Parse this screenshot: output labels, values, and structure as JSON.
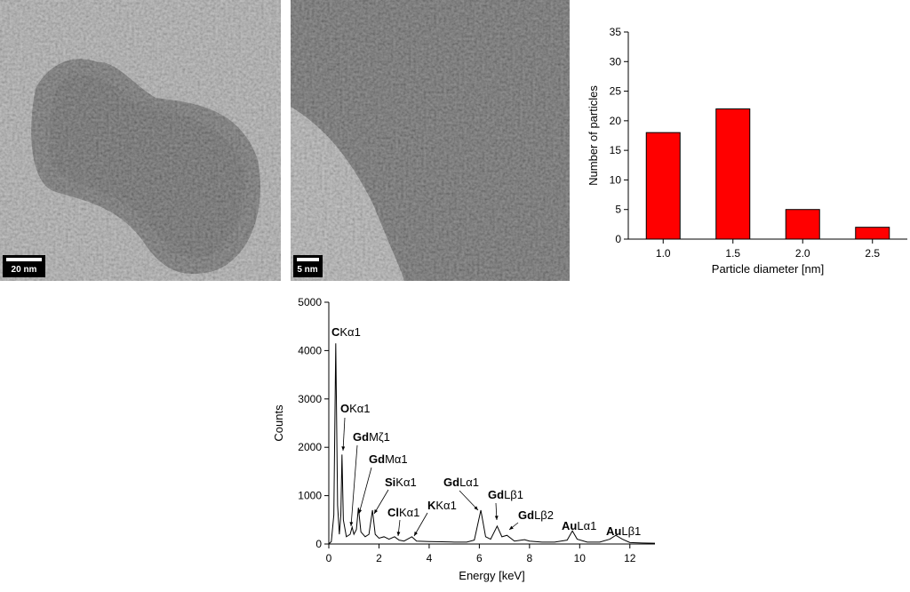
{
  "images": [
    {
      "scale_bar": "20 nm"
    },
    {
      "scale_bar": "5 nm"
    }
  ],
  "chart_data": [
    {
      "type": "bar",
      "x_label": "Particle diameter [nm]",
      "y_label": "Number of particles",
      "categories": [
        "1.0",
        "1.5",
        "2.0",
        "2.5"
      ],
      "values": [
        18,
        22,
        5,
        2
      ],
      "color": "#ff0000",
      "ylim": [
        0,
        35
      ],
      "yticks": [
        0,
        5,
        10,
        15,
        20,
        25,
        30,
        35
      ]
    },
    {
      "type": "line",
      "x_label": "Energy [keV]",
      "y_label": "Counts",
      "color": "#000000",
      "x": [
        0.0,
        0.1,
        0.2,
        0.277,
        0.35,
        0.42,
        0.48,
        0.525,
        0.58,
        0.7,
        0.85,
        0.93,
        1.0,
        1.1,
        1.18,
        1.28,
        1.45,
        1.6,
        1.74,
        1.85,
        2.0,
        2.2,
        2.4,
        2.62,
        2.8,
        3.0,
        3.31,
        3.5,
        4.0,
        4.5,
        5.0,
        5.5,
        5.8,
        6.06,
        6.25,
        6.45,
        6.71,
        6.9,
        7.1,
        7.4,
        7.8,
        8.0,
        8.5,
        9.0,
        9.5,
        9.71,
        9.9,
        10.3,
        10.8,
        11.2,
        11.44,
        11.7,
        12.0,
        12.5,
        13.0
      ],
      "values": [
        0,
        50,
        600,
        4150,
        800,
        200,
        600,
        1850,
        500,
        150,
        200,
        350,
        200,
        300,
        750,
        250,
        150,
        200,
        700,
        200,
        120,
        150,
        100,
        150,
        80,
        60,
        150,
        60,
        50,
        45,
        40,
        40,
        80,
        700,
        150,
        100,
        370,
        150,
        180,
        60,
        90,
        60,
        40,
        40,
        80,
        270,
        100,
        40,
        40,
        100,
        180,
        100,
        30,
        20,
        15
      ],
      "xlim": [
        0,
        13
      ],
      "xticks": [
        0,
        2,
        4,
        6,
        8,
        10,
        12
      ],
      "ylim": [
        0,
        5000
      ],
      "yticks": [
        0,
        1000,
        2000,
        3000,
        4000,
        5000
      ],
      "annotations": [
        {
          "element": "C",
          "line": "Kα1"
        },
        {
          "element": "O",
          "line": "Kα1"
        },
        {
          "element": "Gd",
          "line": "Mζ1"
        },
        {
          "element": "Gd",
          "line": "Mα1"
        },
        {
          "element": "Si",
          "line": "Kα1"
        },
        {
          "element": "Cl",
          "line": "Kα1"
        },
        {
          "element": "K",
          "line": "Kα1"
        },
        {
          "element": "Gd",
          "line": "Lα1"
        },
        {
          "element": "Gd",
          "line": "Lβ1"
        },
        {
          "element": "Gd",
          "line": "Lβ2"
        },
        {
          "element": "Au",
          "line": "Lα1"
        },
        {
          "element": "Au",
          "line": "Lβ1"
        }
      ]
    }
  ]
}
